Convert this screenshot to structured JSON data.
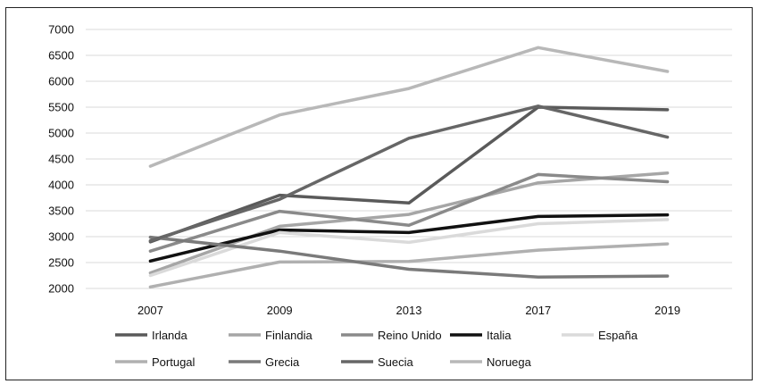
{
  "chart_data": {
    "type": "line",
    "title": "",
    "xlabel": "",
    "ylabel": "",
    "categories": [
      "2007",
      "2009",
      "2013",
      "2017",
      "2019"
    ],
    "ylim": [
      2000,
      7000
    ],
    "yticks": [
      2000,
      2500,
      3000,
      3500,
      4000,
      4500,
      5000,
      5500,
      6000,
      6500,
      7000
    ],
    "grid": true,
    "legend": "bottom",
    "series": [
      {
        "name": "Irlanda",
        "color": "#5a5a5a",
        "values": [
          2900,
          3800,
          3650,
          5500,
          5450
        ]
      },
      {
        "name": "Finlandia",
        "color": "#a6a6a6",
        "values": [
          2300,
          3200,
          3430,
          4040,
          4230
        ]
      },
      {
        "name": "Reino Unido",
        "color": "#8a8a8a",
        "values": [
          2720,
          3490,
          3220,
          4200,
          4060
        ]
      },
      {
        "name": "Italia",
        "color": "#111111",
        "values": [
          2530,
          3130,
          3080,
          3390,
          3420
        ]
      },
      {
        "name": "España",
        "color": "#dadada",
        "values": [
          2250,
          3080,
          2890,
          3250,
          3330
        ]
      },
      {
        "name": "Portugal",
        "color": "#b0b0b0",
        "values": [
          2030,
          2510,
          2520,
          2740,
          2860
        ]
      },
      {
        "name": "Grecia",
        "color": "#7a7a7a",
        "values": [
          2990,
          2720,
          2370,
          2220,
          2240
        ]
      },
      {
        "name": "Suecia",
        "color": "#666666",
        "values": [
          2920,
          3720,
          4900,
          5520,
          4920
        ]
      },
      {
        "name": "Noruega",
        "color": "#b8b8b8",
        "values": [
          4360,
          5350,
          5860,
          6650,
          6190
        ]
      }
    ]
  }
}
